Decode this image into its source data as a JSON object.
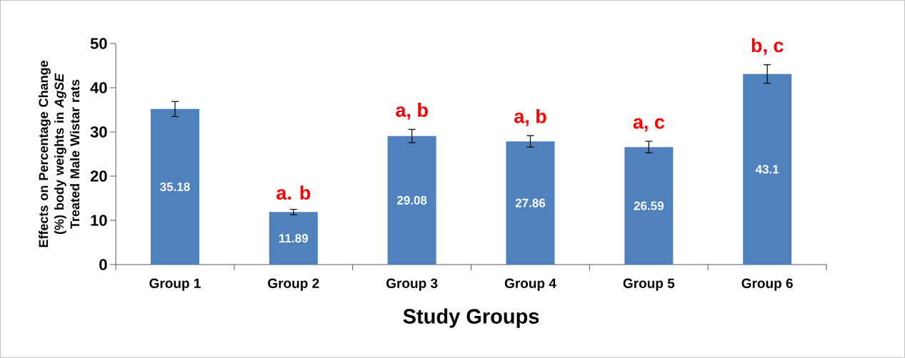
{
  "chart_data": {
    "type": "bar",
    "categories": [
      "Group 1",
      "Group 2",
      "Group 3",
      "Group 4",
      "Group 5",
      "Group 6"
    ],
    "values": [
      35.18,
      11.89,
      29.08,
      27.86,
      26.59,
      43.1
    ],
    "errors": [
      1.7,
      0.6,
      1.5,
      1.3,
      1.3,
      2.1
    ],
    "color": "#4f81bd",
    "data_labels": true,
    "ylim": [
      0,
      50
    ],
    "yticks": [
      0,
      10,
      20,
      30,
      40,
      50
    ],
    "ylabel": "Effects on Percentage Change (%) body weights in *AgSE* Treated Male Wistar rats",
    "xlabel": "Study Groups",
    "annotations": [
      {
        "text": "a. b",
        "x": "Group 2",
        "y": 12.49
      },
      {
        "text": "a, b",
        "x": "Group 3",
        "y": 30.58
      },
      {
        "text": "a, b",
        "x": "Group 4",
        "y": 29.16
      },
      {
        "text": "a, c",
        "x": "Group 5",
        "y": 27.89
      },
      {
        "text": "b, c",
        "x": "Group 6",
        "y": 45.2
      }
    ]
  }
}
